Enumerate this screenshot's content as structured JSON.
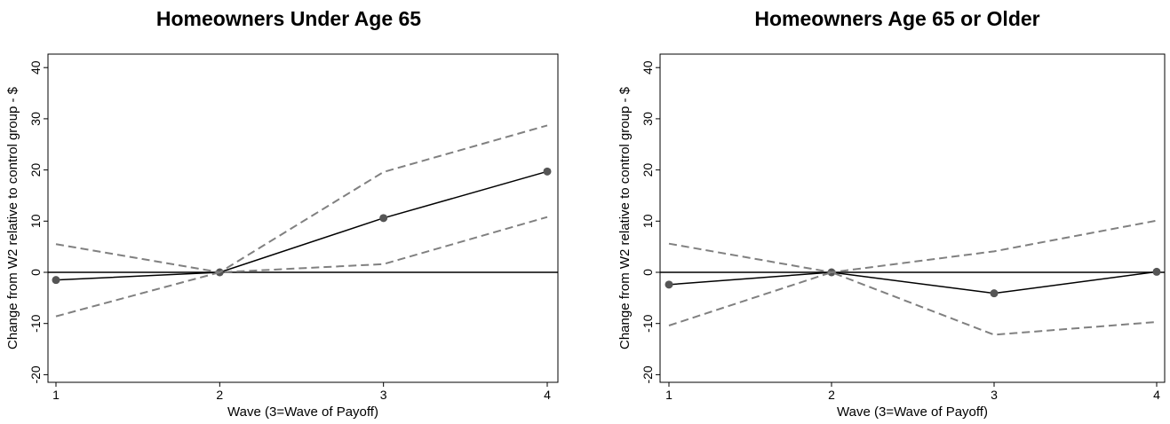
{
  "chart_data": [
    {
      "type": "line",
      "title": "Homeowners Under Age 65",
      "xlabel": "Wave (3=Wave of Payoff)",
      "ylabel": "Change from W2 relative to control group - $",
      "x": [
        1,
        2,
        3,
        4
      ],
      "xticks": [
        1,
        2,
        3,
        4
      ],
      "yticks": [
        -20,
        -10,
        0,
        10,
        20,
        30,
        40
      ],
      "xlim": [
        1,
        4
      ],
      "ylim": [
        -22,
        41
      ],
      "reference_line": 0,
      "series": [
        {
          "style": "solid-markers",
          "color": "#000000",
          "values": [
            -1.5,
            0,
            10.6,
            19.7
          ]
        },
        {
          "style": "dashed",
          "color": "#808080",
          "values": [
            5.5,
            0,
            19.6,
            28.7
          ]
        },
        {
          "style": "dashed",
          "color": "#808080",
          "values": [
            -8.6,
            0,
            1.6,
            10.8
          ]
        }
      ]
    },
    {
      "type": "line",
      "title": "Homeowners Age 65 or Older",
      "xlabel": "Wave (3=Wave of Payoff)",
      "ylabel": "Change from W2 relative to control group - $",
      "x": [
        1,
        2,
        3,
        4
      ],
      "xticks": [
        1,
        2,
        3,
        4
      ],
      "yticks": [
        -20,
        -10,
        0,
        10,
        20,
        30,
        40
      ],
      "xlim": [
        1,
        4
      ],
      "ylim": [
        -22,
        41
      ],
      "reference_line": 0,
      "series": [
        {
          "style": "solid-markers",
          "color": "#000000",
          "values": [
            -2.4,
            0,
            -4.1,
            0.1
          ]
        },
        {
          "style": "dashed",
          "color": "#808080",
          "values": [
            5.6,
            0,
            4.1,
            10.1
          ]
        },
        {
          "style": "dashed",
          "color": "#808080",
          "values": [
            -10.4,
            0,
            -12.2,
            -9.7
          ]
        }
      ]
    }
  ]
}
